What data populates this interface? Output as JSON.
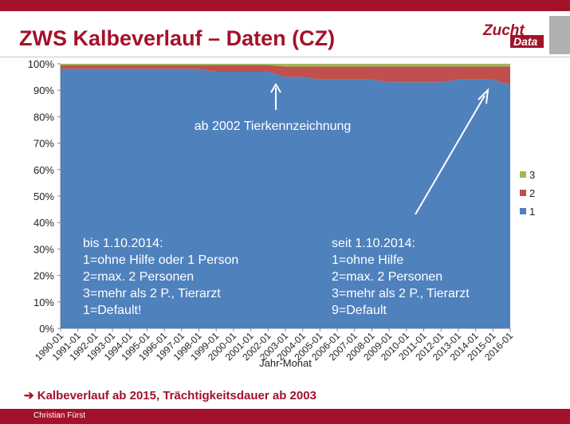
{
  "slide": {
    "title": "ZWS Kalbeverlauf – Daten (CZ)",
    "logo_text_1": "Zucht",
    "logo_text_2": "Data",
    "footer_note": "➔ Kalbeverlauf ab 2015, Trächtigkeitsdauer ab 2003",
    "author": "Christian Fürst",
    "accent_color": "#a3122a"
  },
  "chart_data": {
    "type": "area",
    "stacking": "percent",
    "xlabel": "Jahr-Monat",
    "ylabel": "",
    "ylim": [
      0,
      100
    ],
    "yticks": [
      "0%",
      "10%",
      "20%",
      "30%",
      "40%",
      "50%",
      "60%",
      "70%",
      "80%",
      "90%",
      "100%"
    ],
    "x": [
      "1990-01",
      "1991-01",
      "1992-01",
      "1993-01",
      "1994-01",
      "1995-01",
      "1996-01",
      "1997-01",
      "1998-01",
      "1999-01",
      "2000-01",
      "2001-01",
      "2002-01",
      "2003-01",
      "2004-01",
      "2005-01",
      "2006-01",
      "2007-01",
      "2008-01",
      "2009-01",
      "2010-01",
      "2011-01",
      "2012-01",
      "2013-01",
      "2014-01",
      "2015-01",
      "2016-01"
    ],
    "legend_position": "right",
    "series": [
      {
        "name": "1",
        "color": "#4f81bd",
        "values": [
          98,
          98,
          98,
          98,
          98,
          98,
          98,
          98,
          98,
          97,
          97,
          97,
          97,
          95,
          95,
          94,
          94,
          94,
          94,
          93,
          93,
          93,
          93,
          94,
          94,
          94,
          92
        ]
      },
      {
        "name": "2",
        "color": "#c0504d",
        "values": [
          1.5,
          1.5,
          1.5,
          1.5,
          1.5,
          1.5,
          1.5,
          1.5,
          1.5,
          2.5,
          2.5,
          2.5,
          2.5,
          4,
          4,
          5,
          5,
          5,
          5,
          6,
          6,
          6,
          6,
          5,
          5,
          5,
          7
        ]
      },
      {
        "name": "3",
        "color": "#9bbb59",
        "values": [
          0.5,
          0.5,
          0.5,
          0.5,
          0.5,
          0.5,
          0.5,
          0.5,
          0.5,
          0.5,
          0.5,
          0.5,
          0.5,
          1,
          1,
          1,
          1,
          1,
          1,
          1,
          1,
          1,
          1,
          1,
          1,
          1,
          1
        ]
      }
    ],
    "annotations": {
      "tierkenn": "ab 2002 Tierkennzeichnung",
      "left_block": [
        "bis 1.10.2014:",
        "1=ohne Hilfe oder 1 Person",
        "2=max. 2 Personen",
        "3=mehr als 2 P., Tierarzt",
        "1=Default!"
      ],
      "right_block": [
        "seit 1.10.2014:",
        "1=ohne Hilfe",
        "2=max. 2 Personen",
        "3=mehr als 2 P., Tierarzt",
        "9=Default"
      ]
    }
  }
}
